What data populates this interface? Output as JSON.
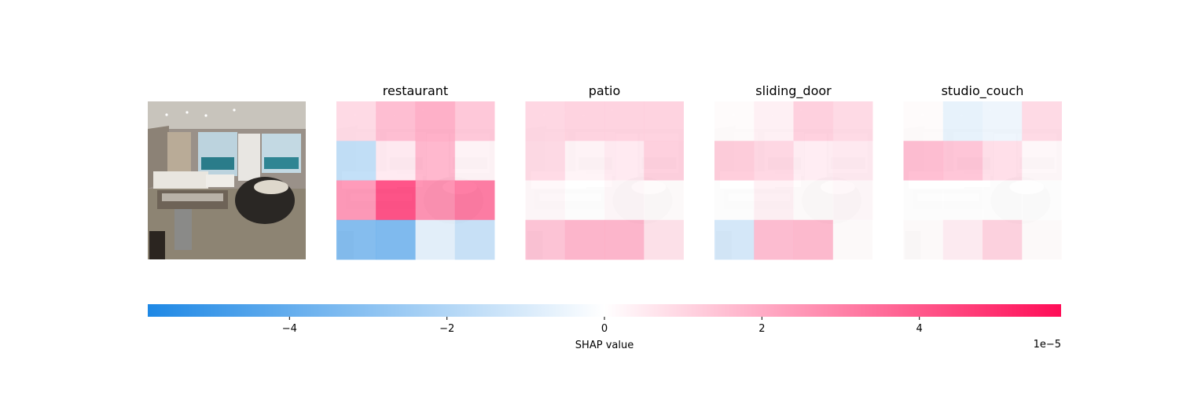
{
  "chart_data": {
    "type": "heatmap",
    "original_image": {
      "grid": [
        4,
        4
      ]
    },
    "panels": [
      {
        "title": "restaurant",
        "grid": [
          [
            1.0,
            1.8,
            2.2,
            1.5
          ],
          [
            -1.8,
            0.6,
            2.0,
            0.3
          ],
          [
            2.8,
            4.8,
            3.0,
            3.6
          ],
          [
            -3.6,
            -3.8,
            -0.8,
            -1.6
          ]
        ]
      },
      {
        "title": "patio",
        "grid": [
          [
            1.1,
            1.2,
            1.2,
            1.2
          ],
          [
            1.0,
            0.3,
            0.6,
            1.3
          ],
          [
            0.2,
            0.0,
            0.2,
            0.1
          ],
          [
            1.6,
            2.0,
            2.0,
            0.8
          ]
        ]
      },
      {
        "title": "sliding_door",
        "grid": [
          [
            0.1,
            0.4,
            1.3,
            1.0
          ],
          [
            1.4,
            1.1,
            0.5,
            0.6
          ],
          [
            0.0,
            0.4,
            0.1,
            0.2
          ],
          [
            -1.2,
            1.8,
            1.9,
            0.1
          ]
        ]
      },
      {
        "title": "studio_couch",
        "grid": [
          [
            0.1,
            -0.7,
            -0.5,
            1.0
          ],
          [
            1.8,
            1.6,
            0.9,
            0.2
          ],
          [
            0.0,
            0.0,
            0.0,
            0.0
          ],
          [
            0.1,
            0.5,
            1.2,
            0.1
          ]
        ]
      }
    ],
    "colorbar": {
      "label": "SHAP value",
      "scale_text": "1e−5",
      "range": [
        -5.8,
        5.8
      ],
      "ticks": [
        -4,
        -2,
        0,
        2,
        4
      ],
      "tick_labels": [
        "−4",
        "−2",
        "0",
        "2",
        "4"
      ],
      "color_negative": "#1e88e5",
      "color_zero": "#ffffff",
      "color_positive": "#ff0d57"
    }
  }
}
